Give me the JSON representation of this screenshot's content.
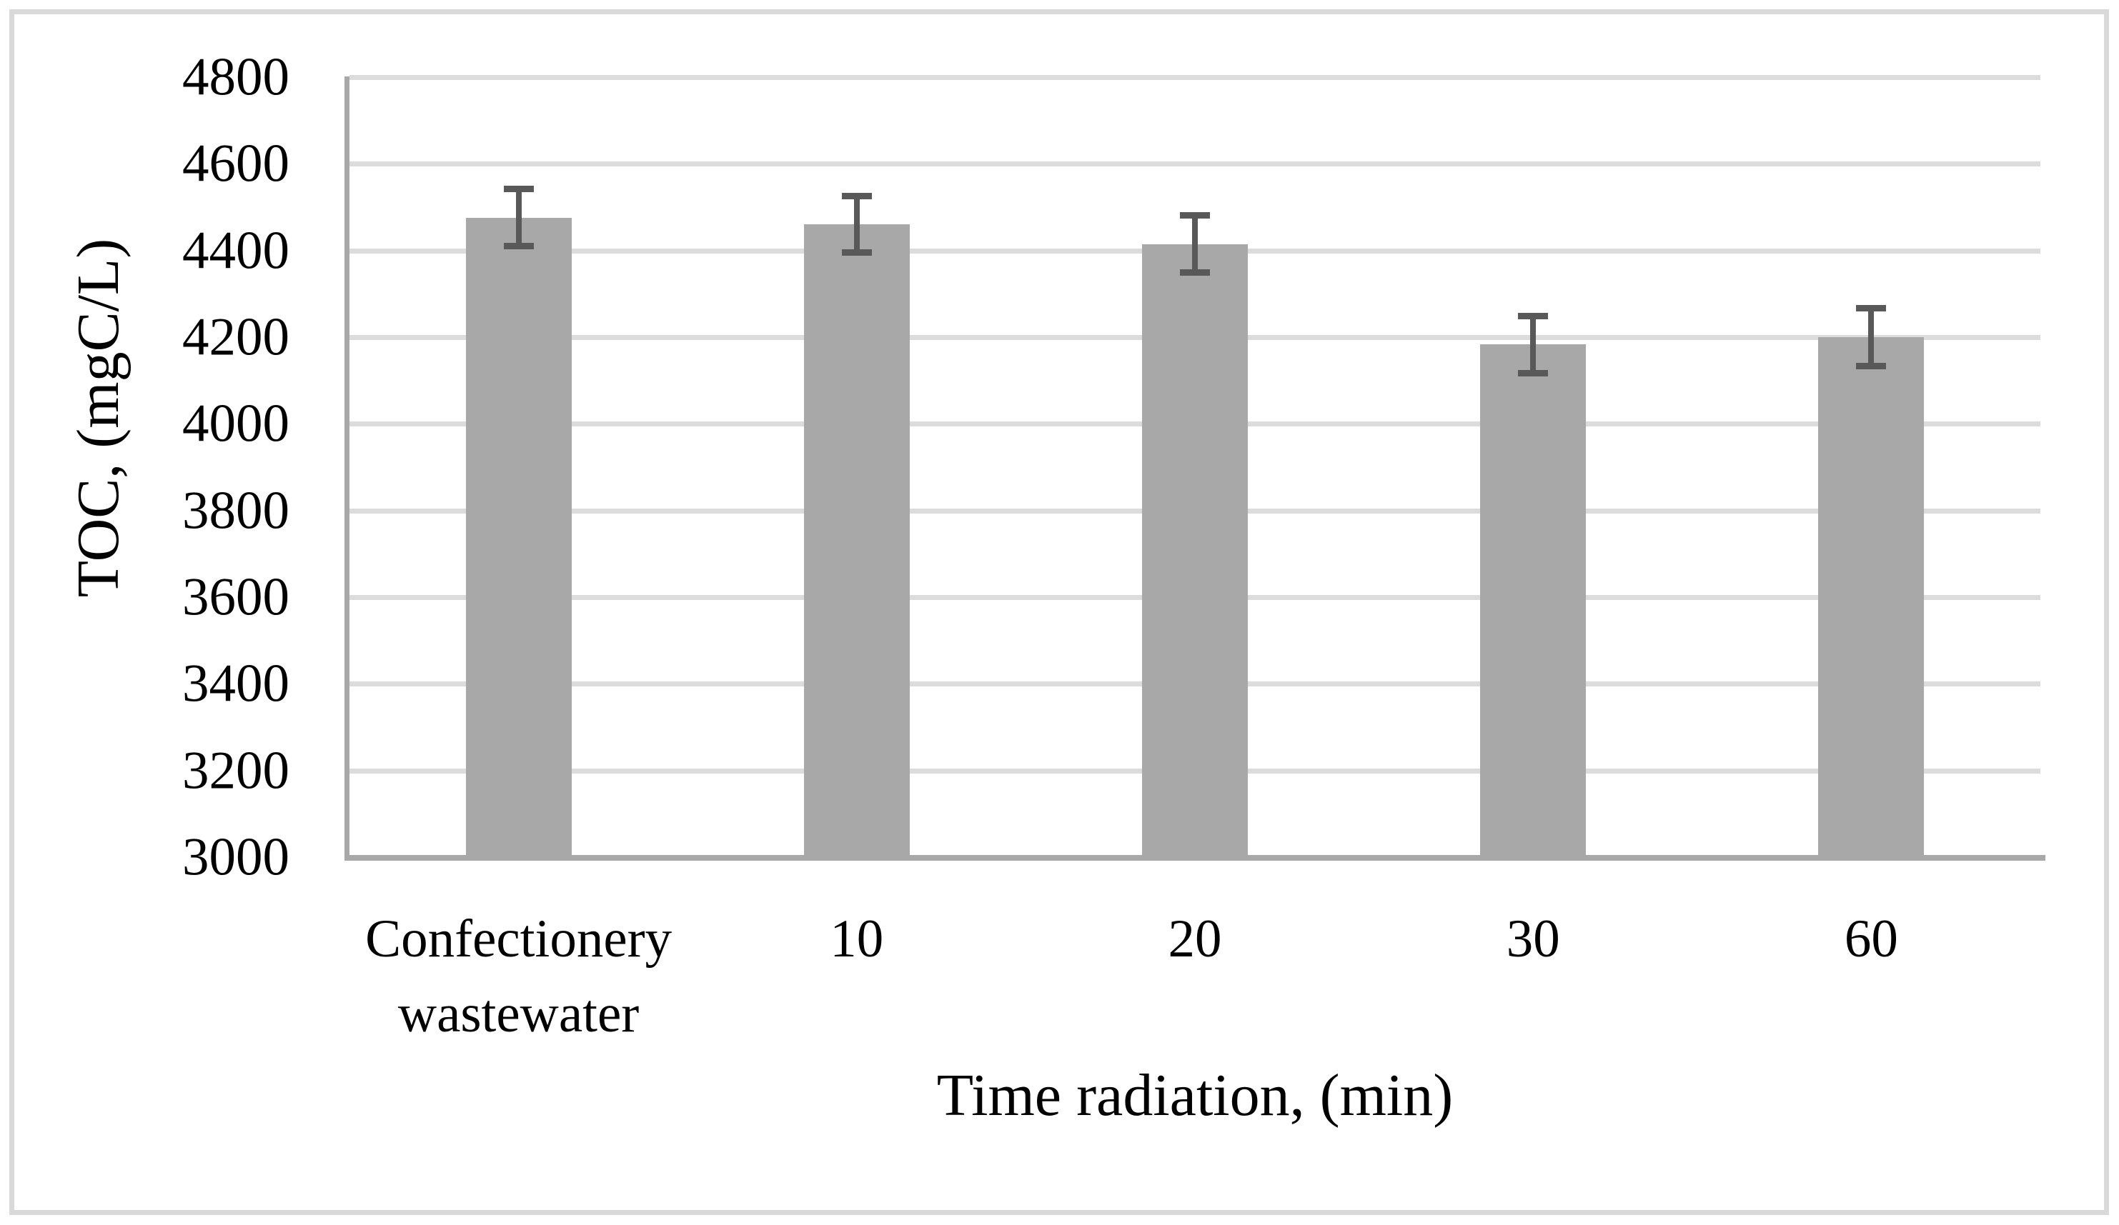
{
  "figure": {
    "border_color": "#d9d9d9",
    "background_color": "#ffffff"
  },
  "chart_data": {
    "type": "bar",
    "title": "",
    "categories": [
      "Confectionery wastewater",
      "10",
      "20",
      "30",
      "60"
    ],
    "values": [
      4476,
      4460,
      4415,
      4183,
      4200
    ],
    "error_bars": [
      66,
      65,
      66,
      66,
      66
    ],
    "xlabel": "Time radiation, (min)",
    "ylabel": "TOC, (mgC/L)",
    "ylim": [
      3000,
      4800
    ],
    "ytick_step": 200,
    "ytick_labels": [
      "3000",
      "3200",
      "3400",
      "3600",
      "3800",
      "4000",
      "4200",
      "4400",
      "4600",
      "4800"
    ],
    "grid": "horizontal-only",
    "legend_position": "none",
    "bar_color": "#a8a8a8",
    "error_bar_color": "#595959",
    "gridline_color": "#dcdcdc",
    "axis_line_color": "#a8a8a8",
    "text_color": "#000000"
  }
}
